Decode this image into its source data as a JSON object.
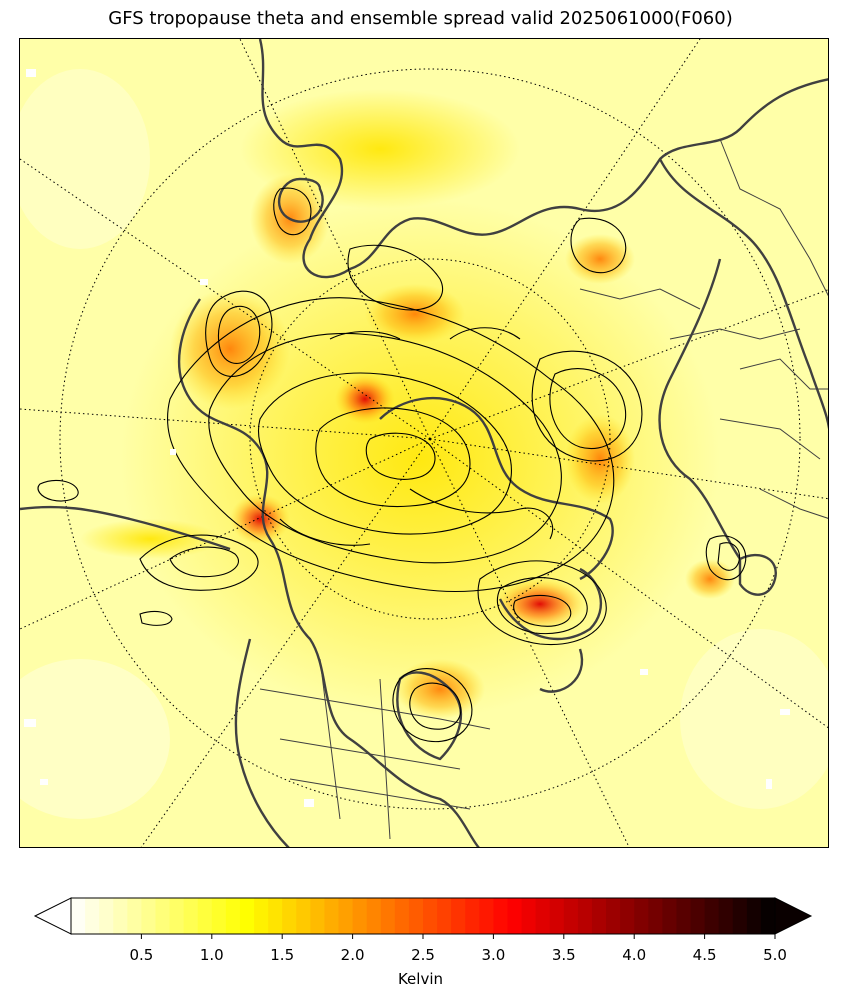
{
  "title": "GFS tropopause theta and ensemble spread valid 2025061000(F060)",
  "colorbar": {
    "label": "Kelvin",
    "colormap": "hot_r",
    "range": [
      0.0,
      5.0
    ],
    "extend": "both",
    "ticks": [
      "0.5",
      "1.0",
      "1.5",
      "2.0",
      "2.5",
      "3.0",
      "3.5",
      "4.0",
      "4.5",
      "5.0"
    ]
  },
  "map": {
    "projection": "north-polar-stereographic",
    "field_background": "#ffffb0",
    "contour_color": "#000000",
    "coastline_color": "#404040",
    "graticule": "dotted"
  }
}
